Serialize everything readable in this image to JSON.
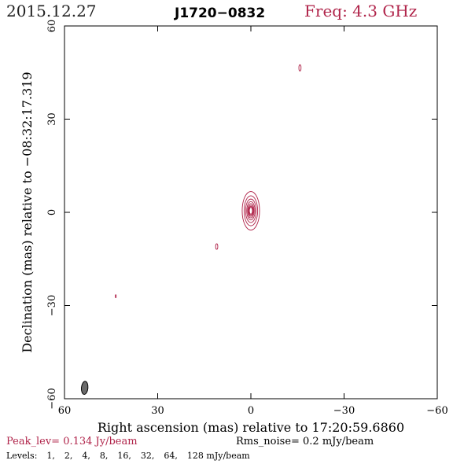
{
  "header": {
    "date": "2015.12.27",
    "source": "J1720−0832",
    "frequency": "Freq: 4.3 GHz"
  },
  "footer": {
    "peak": "Peak_lev=  0.134 Jy/beam",
    "rms": "Rms_noise=  0.2 mJy/beam",
    "levels_label": "Levels:",
    "levels": [
      "1,",
      "2,",
      "4,",
      "8,",
      "16,",
      "32,",
      "64,",
      "128 mJy/beam"
    ]
  },
  "colors": {
    "contour": "#b0244a",
    "beam": "#6a6a6a",
    "frame": "#000000"
  },
  "chart_data": {
    "type": "contour",
    "xlabel": "Right ascension (mas) relative to 17:20:59.6860",
    "ylabel": "Declination (mas) relative to −08:32:17.319",
    "xlim": [
      60,
      -60
    ],
    "ylim": [
      -60,
      60
    ],
    "x_ticks": [
      60,
      30,
      0,
      -30,
      -60
    ],
    "y_ticks": [
      60,
      30,
      0,
      -30,
      -60
    ],
    "x_tick_labels": [
      "60",
      "30",
      "0",
      "−30",
      "−60"
    ],
    "y_tick_labels": [
      "60",
      "30",
      "0",
      "−30",
      "−60"
    ],
    "contour_levels_mJy": [
      1,
      2,
      4,
      8,
      16,
      32,
      64,
      128
    ],
    "peak_Jy_per_beam": 0.134,
    "rms_noise_mJy_per_beam": 0.2,
    "components": [
      {
        "name": "core",
        "x": 0.0,
        "y": 0.5,
        "rx": 2.8,
        "ry": 6.2,
        "n_levels": 8
      },
      {
        "name": "blob-ne",
        "x": -15.8,
        "y": 46.5,
        "rx": 0.35,
        "ry": 1.0,
        "n_levels": 1
      },
      {
        "name": "blob-sw",
        "x": 11.0,
        "y": -11.0,
        "rx": 0.35,
        "ry": 0.9,
        "n_levels": 1
      },
      {
        "name": "blob-far",
        "x": 43.5,
        "y": -27.0,
        "rx": 0.15,
        "ry": 0.5,
        "n_levels": 1
      }
    ],
    "beam": {
      "x": 53.5,
      "y": -56.5,
      "major_mas": 4.2,
      "minor_mas": 2.1,
      "pa_deg": 5
    }
  }
}
